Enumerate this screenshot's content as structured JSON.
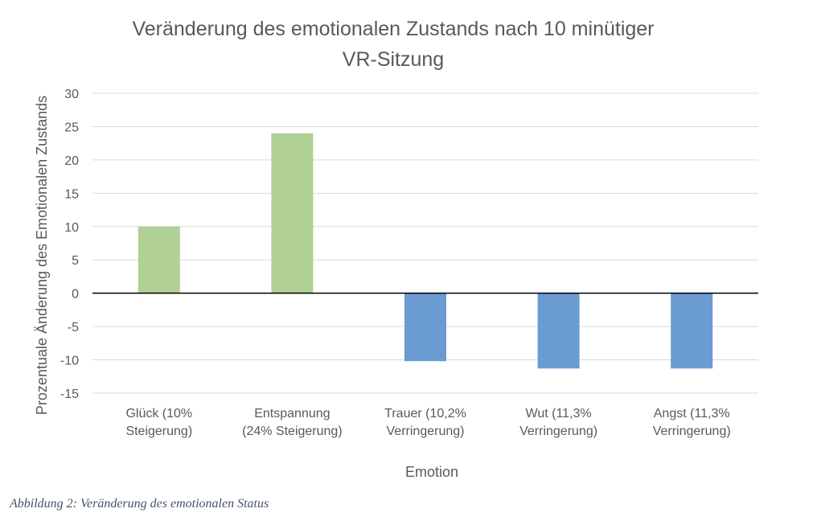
{
  "chart_data": {
    "type": "bar",
    "title_lines": [
      "Veränderung des emotionalen Zustands nach 10 minütiger",
      "VR-Sitzung"
    ],
    "xlabel": "Emotion",
    "ylabel": "Prozentuale Änderung des Emotionalen Zustands",
    "ylim": [
      -15,
      30
    ],
    "yticks": [
      30,
      25,
      20,
      15,
      10,
      5,
      0,
      -5,
      -10,
      -15
    ],
    "grid": true,
    "categories": [
      [
        "Glück (10%",
        "Steigerung)"
      ],
      [
        "Entspannung",
        "(24% Steigerung)"
      ],
      [
        "Trauer (10,2%",
        "Verringerung)"
      ],
      [
        "Wut (11,3%",
        "Verringerung)"
      ],
      [
        "Angst (11,3%",
        "Verringerung)"
      ]
    ],
    "values": [
      10,
      24,
      -10.2,
      -11.3,
      -11.3
    ],
    "colors": {
      "positive": "#b1d095",
      "negative": "#6a9bd1",
      "grid": "#d9d9d9",
      "zero_line": "#000000"
    }
  },
  "caption": "Abbildung 2: Veränderung des emotionalen Status"
}
